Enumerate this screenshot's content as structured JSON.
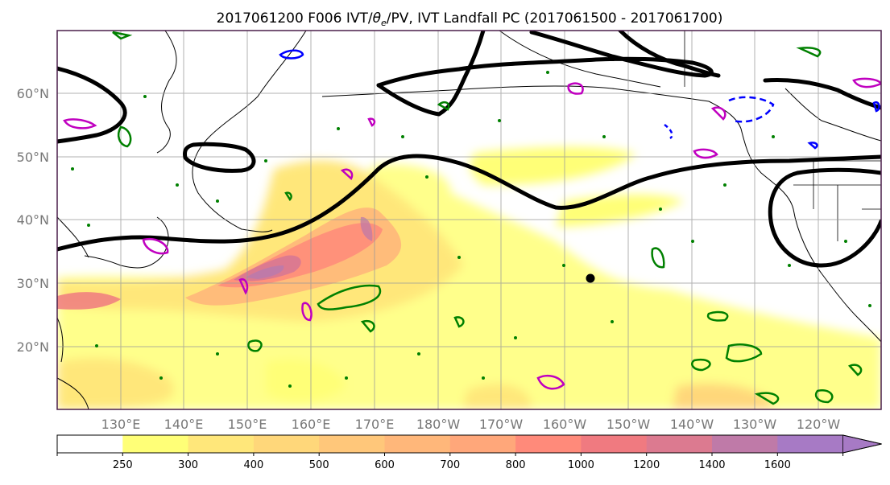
{
  "title": {
    "prefix": "2017061200 F006 IVT/",
    "theta": "θ",
    "theta_sub": "e",
    "suffix": "/PV, IVT Landfall PC (2017061500 - 2017061700)"
  },
  "lat_labels": [
    "60°N",
    "50°N",
    "40°N",
    "30°N",
    "20°N"
  ],
  "lon_labels": [
    "130°E",
    "140°E",
    "150°E",
    "160°E",
    "170°E",
    "180°W",
    "170°W",
    "160°W",
    "150°W",
    "140°W",
    "130°W",
    "120°W"
  ],
  "colorbar": {
    "levels": [
      "250",
      "300",
      "400",
      "500",
      "600",
      "700",
      "800",
      "1000",
      "1200",
      "1400",
      "1600"
    ],
    "colors": [
      "#ffffff",
      "#ffff77",
      "#ffe77a",
      "#ffd77a",
      "#ffc77a",
      "#ffb77a",
      "#ffa77a",
      "#ff8a7a",
      "#f07a80",
      "#dc7a90",
      "#bf7aa8",
      "#a77ac5"
    ]
  },
  "contour_colors": {
    "theta_e": "#000000",
    "positive_pv": "#008000",
    "negative_pv": "#0000ff",
    "landfall_pc": "#c000c0"
  }
}
